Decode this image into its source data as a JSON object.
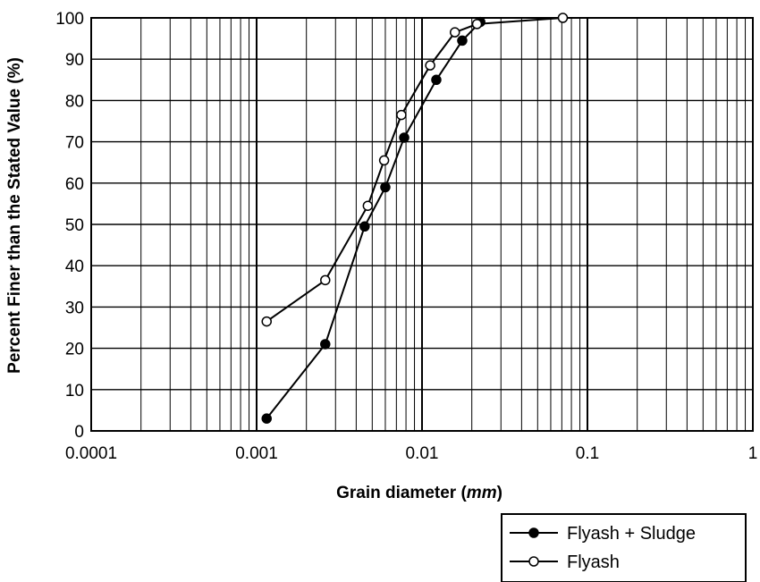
{
  "chart_data": {
    "type": "line",
    "xscale": "log",
    "xlim": [
      0.0001,
      1
    ],
    "ylim": [
      0,
      100
    ],
    "grid": true,
    "legend_position": "bottom-right",
    "x_ticks": [
      "0.0001",
      "0.001",
      "0.01",
      "0.1",
      "1"
    ],
    "y_ticks": [
      "0",
      "10",
      "20",
      "30",
      "40",
      "50",
      "60",
      "70",
      "80",
      "90",
      "100"
    ],
    "xlabel_pre": "Grain diameter (",
    "xlabel_unit": "mm",
    "xlabel_post": ")",
    "ylabel": "Percent Finer than the Stated Value (%)",
    "series": [
      {
        "name": "Flyash + Sludge",
        "marker": "filled-circle",
        "x": [
          0.00115,
          0.0026,
          0.0045,
          0.006,
          0.0078,
          0.0122,
          0.0175,
          0.0225
        ],
        "y": [
          3,
          21,
          49.5,
          59,
          71,
          85,
          94.5,
          99
        ]
      },
      {
        "name": "Flyash",
        "marker": "open-circle",
        "x": [
          0.00115,
          0.0026,
          0.0047,
          0.0059,
          0.0075,
          0.0112,
          0.0158,
          0.0215,
          0.071
        ],
        "y": [
          26.5,
          36.5,
          54.5,
          65.5,
          76.5,
          88.5,
          96.5,
          98.5,
          100
        ]
      }
    ]
  }
}
